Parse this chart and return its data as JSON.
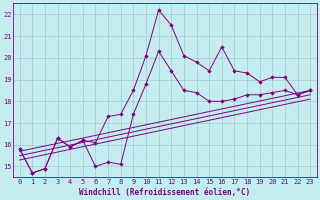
{
  "xlabel": "Windchill (Refroidissement éolien,°C)",
  "bg_color": "#c5ecee",
  "line_color": "#800080",
  "grid_color": "#9ecdd0",
  "xlim_min": -0.5,
  "xlim_max": 23.5,
  "ylim_min": 14.5,
  "ylim_max": 22.5,
  "yticks": [
    15,
    16,
    17,
    18,
    19,
    20,
    21,
    22
  ],
  "xticks": [
    0,
    1,
    2,
    3,
    4,
    5,
    6,
    7,
    8,
    9,
    10,
    11,
    12,
    13,
    14,
    15,
    16,
    17,
    18,
    19,
    20,
    21,
    22,
    23
  ],
  "series1_x": [
    0,
    1,
    2,
    3,
    4,
    5,
    6,
    7,
    8,
    9,
    10,
    11,
    12,
    13,
    14,
    15,
    16,
    17,
    18,
    19,
    20,
    21,
    22,
    23
  ],
  "series1_y": [
    15.8,
    14.7,
    14.9,
    16.3,
    15.9,
    16.2,
    16.1,
    17.3,
    17.4,
    18.5,
    20.1,
    22.2,
    21.5,
    20.1,
    19.8,
    19.4,
    20.5,
    19.4,
    19.3,
    18.9,
    19.1,
    19.1,
    18.3,
    18.5
  ],
  "series2_x": [
    0,
    1,
    2,
    3,
    4,
    5,
    6,
    7,
    8,
    9,
    10,
    11,
    12,
    13,
    14,
    15,
    16,
    17,
    18,
    19,
    20,
    21,
    22,
    23
  ],
  "series2_y": [
    15.8,
    14.7,
    14.9,
    16.3,
    15.9,
    16.2,
    15.0,
    15.2,
    15.1,
    17.4,
    18.8,
    20.3,
    19.4,
    18.5,
    18.4,
    18.0,
    18.0,
    18.1,
    18.3,
    18.3,
    18.4,
    18.5,
    18.3,
    18.5
  ],
  "line1_x": [
    0,
    23
  ],
  "line1_y": [
    15.7,
    18.5
  ],
  "line2_x": [
    0,
    23
  ],
  "line2_y": [
    15.5,
    18.3
  ],
  "line3_x": [
    0,
    23
  ],
  "line3_y": [
    15.3,
    18.1
  ],
  "tick_fontsize": 5.0,
  "tick_color": "#7b007b",
  "xlabel_fontsize": 5.5,
  "xlabel_color": "#7b007b"
}
